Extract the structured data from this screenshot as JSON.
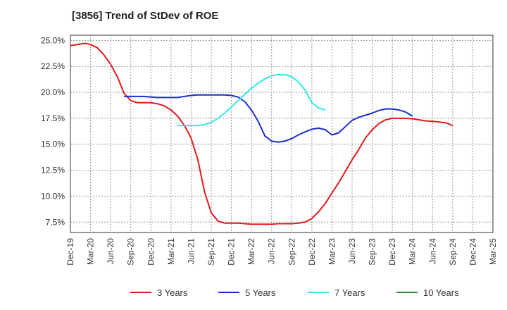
{
  "chart_data": {
    "type": "line",
    "title": "[3856]  Trend of StDev of ROE",
    "xlabel": "",
    "ylabel": "",
    "x_ticks": [
      "Dec-19",
      "Mar-20",
      "Jun-20",
      "Sep-20",
      "Dec-20",
      "Mar-21",
      "Jun-21",
      "Sep-21",
      "Dec-21",
      "Mar-22",
      "Jun-22",
      "Sep-22",
      "Dec-22",
      "Mar-23",
      "Jun-23",
      "Sep-23",
      "Dec-23",
      "Mar-24",
      "Jun-24",
      "Sep-24",
      "Dec-24",
      "Mar-25"
    ],
    "y_ticks": [
      "7.5%",
      "10.0%",
      "12.5%",
      "15.0%",
      "17.5%",
      "20.0%",
      "22.5%",
      "25.0%"
    ],
    "ylim": [
      6.5,
      25.5
    ],
    "grid": true,
    "legend_position": "bottom",
    "series": [
      {
        "name": "3 Years",
        "color": "#e31a1c",
        "points": [
          [
            0,
            24.5
          ],
          [
            1,
            24.6
          ],
          [
            2,
            24.7
          ],
          [
            2.5,
            24.7
          ],
          [
            3,
            24.6
          ],
          [
            4,
            24.3
          ],
          [
            5,
            23.6
          ],
          [
            6,
            22.7
          ],
          [
            7,
            21.5
          ],
          [
            8,
            19.9
          ],
          [
            9,
            19.2
          ],
          [
            10,
            19.0
          ],
          [
            11,
            19.0
          ],
          [
            12,
            19.0
          ],
          [
            13,
            18.9
          ],
          [
            14,
            18.7
          ],
          [
            15,
            18.3
          ],
          [
            16,
            17.7
          ],
          [
            17,
            16.8
          ],
          [
            18,
            15.6
          ],
          [
            19,
            13.5
          ],
          [
            20,
            10.4
          ],
          [
            21,
            8.4
          ],
          [
            22,
            7.6
          ],
          [
            23,
            7.4
          ],
          [
            24,
            7.4
          ],
          [
            25,
            7.4
          ],
          [
            26,
            7.35
          ],
          [
            27,
            7.3
          ],
          [
            28,
            7.3
          ],
          [
            29,
            7.3
          ],
          [
            30,
            7.3
          ],
          [
            31,
            7.35
          ],
          [
            32,
            7.35
          ],
          [
            33,
            7.35
          ],
          [
            34,
            7.4
          ],
          [
            35,
            7.5
          ],
          [
            36,
            7.85
          ],
          [
            37,
            8.5
          ],
          [
            38,
            9.3
          ],
          [
            39,
            10.3
          ],
          [
            40,
            11.3
          ],
          [
            41,
            12.4
          ],
          [
            42,
            13.5
          ],
          [
            43,
            14.5
          ],
          [
            44,
            15.6
          ],
          [
            45,
            16.4
          ],
          [
            46,
            17.0
          ],
          [
            47,
            17.35
          ],
          [
            48,
            17.5
          ],
          [
            49,
            17.5
          ],
          [
            50,
            17.5
          ],
          [
            51,
            17.45
          ],
          [
            52,
            17.35
          ],
          [
            53,
            17.25
          ],
          [
            54,
            17.2
          ],
          [
            55,
            17.15
          ],
          [
            56,
            17.05
          ],
          [
            57,
            16.8
          ]
        ]
      },
      {
        "name": "5 Years",
        "color": "#1f2ec9",
        "points": [
          [
            8,
            19.6
          ],
          [
            9,
            19.6
          ],
          [
            10,
            19.6
          ],
          [
            11,
            19.6
          ],
          [
            12,
            19.55
          ],
          [
            13,
            19.5
          ],
          [
            14,
            19.5
          ],
          [
            15,
            19.5
          ],
          [
            16,
            19.5
          ],
          [
            17,
            19.6
          ],
          [
            18,
            19.7
          ],
          [
            19,
            19.75
          ],
          [
            20,
            19.75
          ],
          [
            21,
            19.75
          ],
          [
            22,
            19.75
          ],
          [
            23,
            19.75
          ],
          [
            24,
            19.7
          ],
          [
            25,
            19.55
          ],
          [
            26,
            19.1
          ],
          [
            27,
            18.3
          ],
          [
            28,
            17.2
          ],
          [
            29,
            15.8
          ],
          [
            30,
            15.3
          ],
          [
            31,
            15.2
          ],
          [
            32,
            15.3
          ],
          [
            33,
            15.55
          ],
          [
            34,
            15.9
          ],
          [
            35,
            16.2
          ],
          [
            36,
            16.45
          ],
          [
            37,
            16.55
          ],
          [
            38,
            16.4
          ],
          [
            39,
            15.9
          ],
          [
            40,
            16.1
          ],
          [
            41,
            16.7
          ],
          [
            42,
            17.3
          ],
          [
            43,
            17.6
          ],
          [
            44,
            17.8
          ],
          [
            45,
            18.0
          ],
          [
            46,
            18.25
          ],
          [
            47,
            18.4
          ],
          [
            48,
            18.4
          ],
          [
            49,
            18.3
          ],
          [
            50,
            18.1
          ],
          [
            51,
            17.7
          ]
        ]
      },
      {
        "name": "7 Years",
        "color": "#33e8e8",
        "points": [
          [
            16,
            16.8
          ],
          [
            17,
            16.8
          ],
          [
            18,
            16.8
          ],
          [
            19,
            16.8
          ],
          [
            20,
            16.9
          ],
          [
            21,
            17.1
          ],
          [
            22,
            17.5
          ],
          [
            23,
            18.0
          ],
          [
            24,
            18.6
          ],
          [
            25,
            19.2
          ],
          [
            26,
            19.8
          ],
          [
            27,
            20.4
          ],
          [
            28,
            20.9
          ],
          [
            29,
            21.3
          ],
          [
            30,
            21.6
          ],
          [
            31,
            21.7
          ],
          [
            32,
            21.7
          ],
          [
            33,
            21.5
          ],
          [
            34,
            21.0
          ],
          [
            35,
            20.2
          ],
          [
            36,
            19.0
          ],
          [
            37,
            18.5
          ],
          [
            38,
            18.3
          ]
        ]
      },
      {
        "name": "10 Years",
        "color": "#2e8b2e",
        "points": []
      }
    ]
  }
}
